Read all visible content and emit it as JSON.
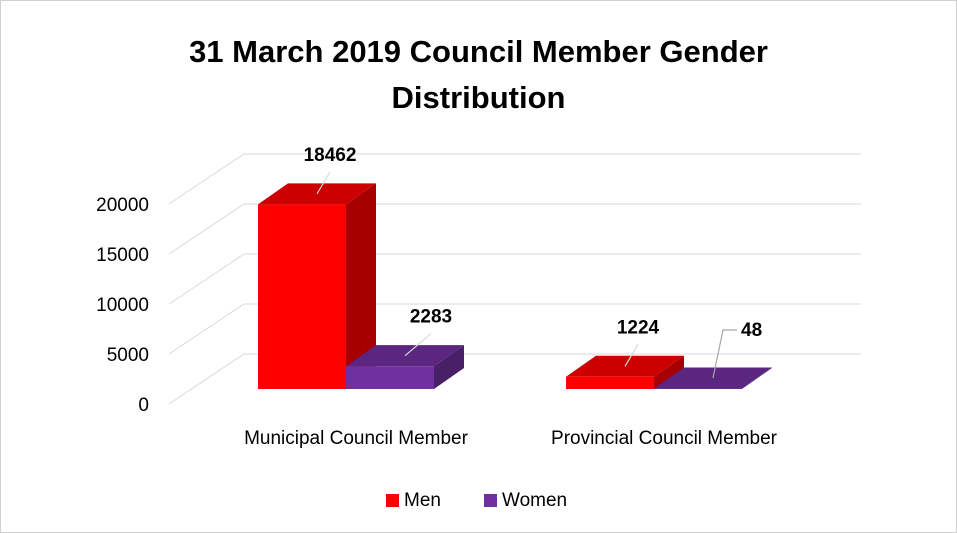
{
  "chart_data": {
    "type": "bar3d",
    "title": "31 March 2019 Council Member Gender Distribution",
    "categories": [
      "Municipal Council Member",
      "Provincial Council Member"
    ],
    "series": [
      {
        "name": "Men",
        "color": "#ff0000",
        "values": [
          18462,
          1224
        ]
      },
      {
        "name": "Women",
        "color": "#7030a0",
        "values": [
          2283,
          48
        ]
      }
    ],
    "ylim": [
      0,
      20000
    ],
    "yticks": [
      0,
      5000,
      10000,
      15000,
      20000
    ],
    "grid": true,
    "legend": "bottom"
  }
}
